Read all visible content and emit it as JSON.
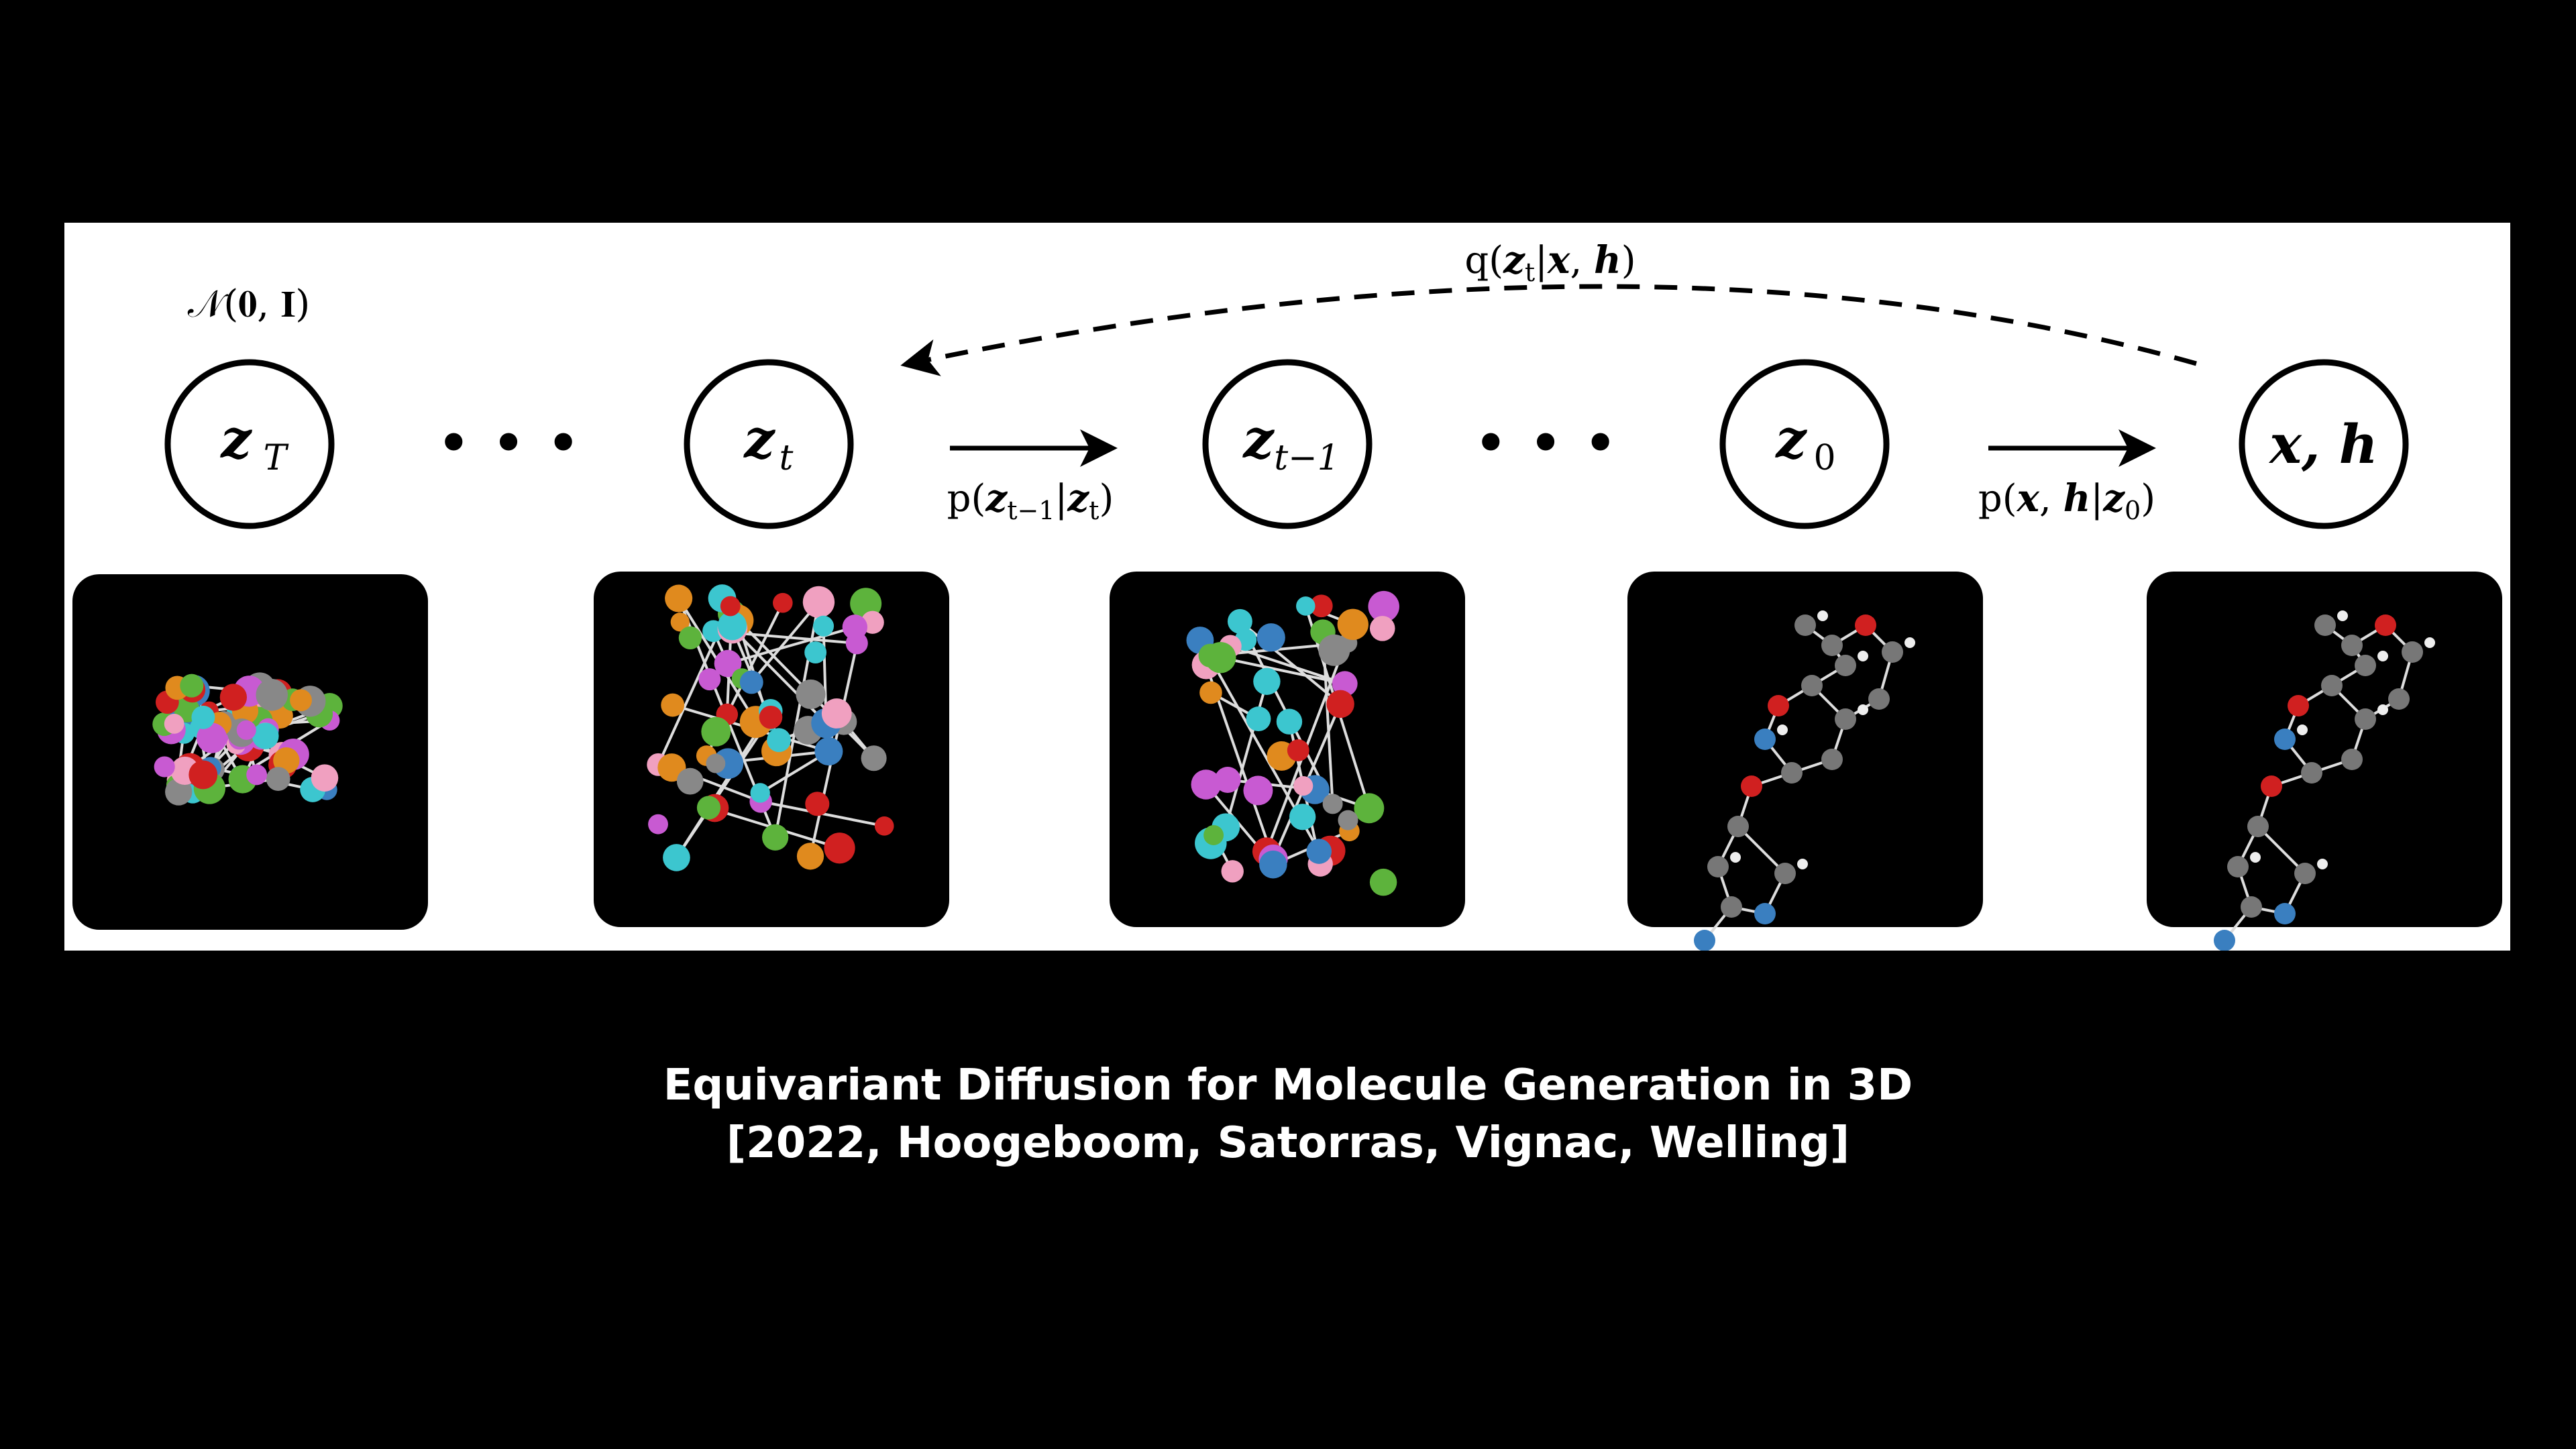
{
  "prior_label": "𝒩(𝟎, 𝐈)",
  "nodes": [
    {
      "id": "zT",
      "var": "z",
      "sub": "T"
    },
    {
      "id": "zt",
      "var": "z",
      "sub": "t"
    },
    {
      "id": "zt-1",
      "var": "z",
      "sub": "t−1"
    },
    {
      "id": "z0",
      "var": "z",
      "sub": "0"
    },
    {
      "id": "xh",
      "var": "x, h",
      "sub": ""
    }
  ],
  "ellipsis": "• • •",
  "forward_label": "q(zt|x, h)",
  "reverse_label_1": "p(zt−1|zt)",
  "reverse_label_2": "p(x, h|z0)",
  "caption": {
    "title": "Equivariant Diffusion for Molecule Generation in 3D",
    "subtitle": "[2022, Hoogeboom, Satorras, Vignac, Welling]"
  },
  "colors": {
    "background": "#000000",
    "panel": "#ffffff",
    "atom_colors": [
      "#e08a1e",
      "#3cc6cf",
      "#5db33c",
      "#c85ad2",
      "#d02020",
      "#3a7fc0",
      "#888888",
      "#f0a0c0"
    ]
  }
}
